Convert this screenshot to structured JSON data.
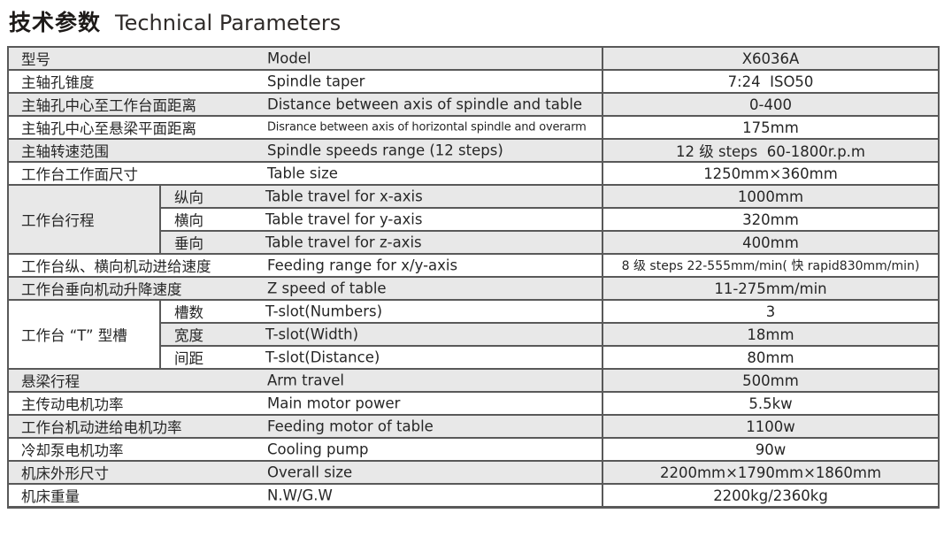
{
  "title": {
    "zh": "技术参数",
    "en": "Technical Parameters"
  },
  "colors": {
    "row_gray": "#e8e8e8",
    "row_white": "#ffffff",
    "border": "#595959",
    "text": "#262626"
  },
  "table": {
    "rows": [
      {
        "type": "normal",
        "zh": "型号",
        "en": "Model",
        "value": "X6036A",
        "shade": "gray"
      },
      {
        "type": "normal",
        "zh": "主轴孔锥度",
        "en": "Spindle taper",
        "value": "7:24  ISO50",
        "shade": "white"
      },
      {
        "type": "normal",
        "zh": "主轴孔中心至工作台面距离",
        "en": "Distance between axis of spindle and table",
        "value": "0-400",
        "shade": "gray"
      },
      {
        "type": "normal",
        "zh": "主轴孔中心至悬梁平面距离",
        "en": "Disrance between axis of horizontal spindle and overarm",
        "value": "175mm",
        "shade": "white",
        "small_en": true
      },
      {
        "type": "normal",
        "zh": "主轴转速范围",
        "en": "Spindle speeds range (12 steps)",
        "value": "12 级 steps  60-1800r.p.m",
        "shade": "gray"
      },
      {
        "type": "normal",
        "zh": "工作台工作面尺寸",
        "en": "Table size",
        "value": "1250mm×360mm",
        "shade": "white"
      },
      {
        "type": "group-start",
        "group": "工作台行程",
        "sub": "纵向",
        "en": "Table travel for x-axis",
        "value": "1000mm",
        "shade": "gray"
      },
      {
        "type": "group-mid",
        "sub": "横向",
        "en": "Table travel for y-axis",
        "value": "320mm",
        "shade": "white"
      },
      {
        "type": "group-mid",
        "sub": "垂向",
        "en": "Table travel for z-axis",
        "value": "400mm",
        "shade": "gray"
      },
      {
        "type": "normal",
        "zh": "工作台纵、横向机动进给速度",
        "en": "Feeding range for x/y-axis",
        "value": "8 级 steps 22-555mm/min( 快 rapid830mm/min)",
        "shade": "white",
        "tight_val": true
      },
      {
        "type": "normal",
        "zh": "工作台垂向机动升降速度",
        "en": "Z speed of table",
        "value": "11-275mm/min",
        "shade": "gray"
      },
      {
        "type": "group-start",
        "group": "工作台 “T” 型槽",
        "sub": "槽数",
        "en": "T-slot(Numbers)",
        "value": "3",
        "shade": "white"
      },
      {
        "type": "group-mid",
        "sub": "宽度",
        "en": "T-slot(Width)",
        "value": "18mm",
        "shade": "gray"
      },
      {
        "type": "group-mid",
        "sub": "间距",
        "en": "T-slot(Distance)",
        "value": "80mm",
        "shade": "white"
      },
      {
        "type": "normal",
        "zh": "悬梁行程",
        "en": "Arm travel",
        "value": "500mm",
        "shade": "gray"
      },
      {
        "type": "normal",
        "zh": "主传动电机功率",
        "en": "Main motor power",
        "value": "5.5kw",
        "shade": "white"
      },
      {
        "type": "normal",
        "zh": "工作台机动进给电机功率",
        "en": "Feeding motor of table",
        "value": "1100w",
        "shade": "gray"
      },
      {
        "type": "normal",
        "zh": "冷却泵电机功率",
        "en": "Cooling pump",
        "value": "90w",
        "shade": "white"
      },
      {
        "type": "normal",
        "zh": "机床外形尺寸",
        "en": "Overall size",
        "value": "2200mm×1790mm×1860mm",
        "shade": "gray"
      },
      {
        "type": "normal",
        "zh": "机床重量",
        "en": "N.W/G.W",
        "value": "2200kg/2360kg",
        "shade": "white"
      }
    ]
  }
}
